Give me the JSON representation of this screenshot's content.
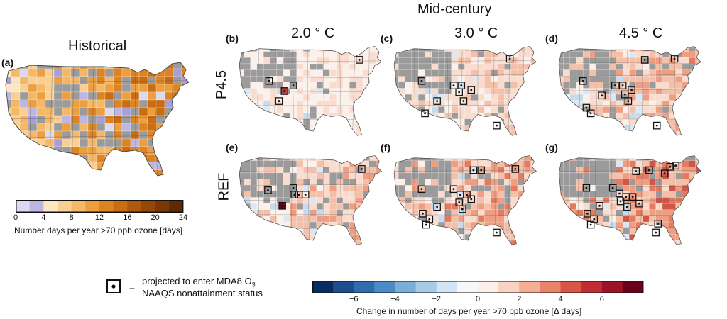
{
  "header": {
    "mid_century": "Mid-century"
  },
  "historical": {
    "title": "Historical",
    "letter": "(a)",
    "colorbar": {
      "ticks": [
        "0",
        "4",
        "8",
        "12",
        "16",
        "20",
        "24"
      ],
      "colors": [
        "#dcd8ee",
        "#bdb6e2",
        "#fde6c2",
        "#f9cf92",
        "#f4b866",
        "#ec9f3f",
        "#de8321",
        "#c96c12",
        "#b0580c",
        "#954708",
        "#7a3806",
        "#5e2a04"
      ],
      "label": "Number days per year >70 ppb ozone [days]"
    }
  },
  "columns": [
    "2.0 ° C",
    "3.0 ° C",
    "4.5 ° C"
  ],
  "rows": [
    "P4.5",
    "REF"
  ],
  "panels": [
    {
      "letter": "(b)",
      "row": 0,
      "col": 0,
      "intensity": 0.25
    },
    {
      "letter": "(c)",
      "row": 0,
      "col": 1,
      "intensity": 0.45
    },
    {
      "letter": "(d)",
      "row": 0,
      "col": 2,
      "intensity": 0.6
    },
    {
      "letter": "(e)",
      "row": 1,
      "col": 0,
      "intensity": 0.55
    },
    {
      "letter": "(f)",
      "row": 1,
      "col": 1,
      "intensity": 0.75
    },
    {
      "letter": "(g)",
      "row": 1,
      "col": 2,
      "intensity": 0.9
    }
  ],
  "change_colorbar": {
    "ticks": [
      "−6",
      "−4",
      "−2",
      "0",
      "2",
      "4",
      "6"
    ],
    "colors": [
      "#0b2c60",
      "#1c4d8c",
      "#2f6db0",
      "#4c8cc4",
      "#7aaed6",
      "#a8cbe5",
      "#d3e4f2",
      "#f4f7fb",
      "#fcefe8",
      "#f9d2c1",
      "#f4ae96",
      "#ea8469",
      "#d95548",
      "#c02d35",
      "#9c1326",
      "#6b0019"
    ],
    "label": "Change in number of days per year >70 ppb ozone [Δ days]"
  },
  "legend": {
    "equals": "=",
    "line1": "projected to enter MDA8 O",
    "subscript": "3",
    "line2": "NAAQS nonattainment status"
  }
}
